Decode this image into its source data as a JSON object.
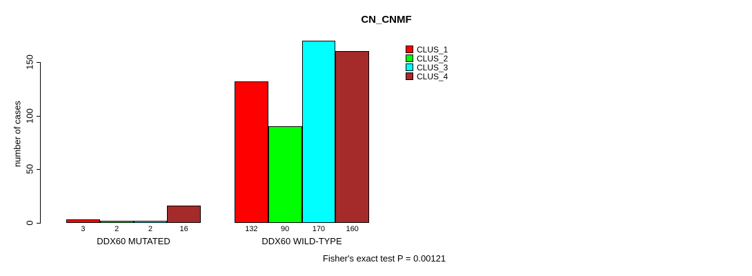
{
  "chart_data": {
    "type": "bar",
    "title": "CN_CNMF",
    "ylabel": "number of cases",
    "xlabel": "",
    "ylim": [
      0,
      170
    ],
    "yticks": [
      0,
      50,
      100,
      150
    ],
    "grid": false,
    "legend_position": "inside-top-right",
    "groups": [
      "DDX60 MUTATED",
      "DDX60 WILD-TYPE"
    ],
    "series": [
      {
        "name": "CLUS_1",
        "color": "#FF0000",
        "values": [
          3,
          132
        ]
      },
      {
        "name": "CLUS_2",
        "color": "#00FF00",
        "values": [
          2,
          90
        ]
      },
      {
        "name": "CLUS_3",
        "color": "#00FFFF",
        "values": [
          2,
          170
        ]
      },
      {
        "name": "CLUS_4",
        "color": "#A52A2A",
        "values": [
          16,
          160
        ]
      }
    ],
    "bar_value_labels": [
      [
        "3",
        "2",
        "2",
        "16"
      ],
      [
        "132",
        "90",
        "170",
        "160"
      ]
    ],
    "annotation": "Fisher's exact test P = 0.00121"
  },
  "colors": {
    "background": "#FFFFFF",
    "axis": "#000000",
    "bar_border": "#000000",
    "text": "#000000"
  }
}
